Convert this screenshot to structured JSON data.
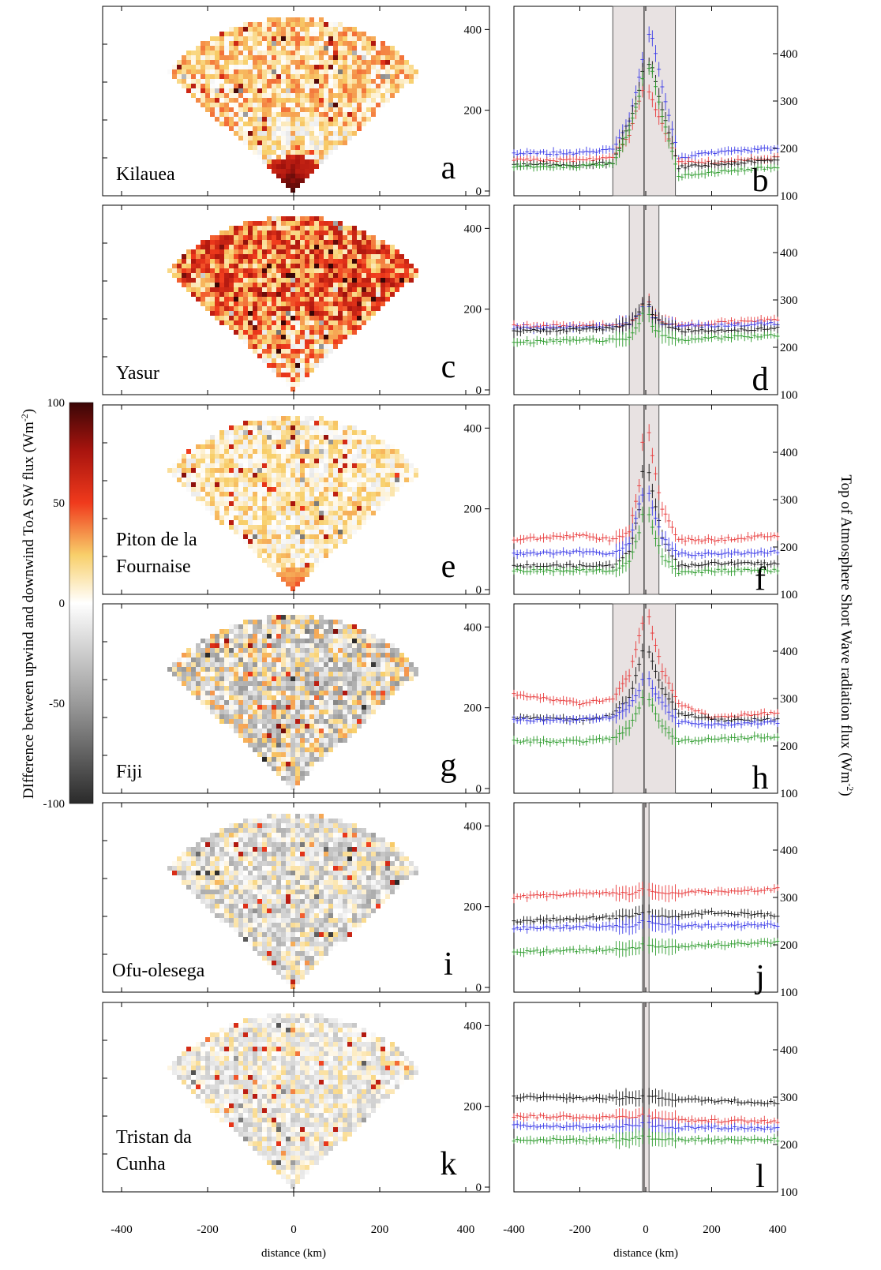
{
  "figure": {
    "colorbar": {
      "label": "DIfference between upwind and downwind ToA SW flux (Wm-2)",
      "ticks": [
        "100",
        "50",
        "0",
        "-50",
        "-100"
      ]
    },
    "right_ylabel": "Top of Atmosphere Short Wave radiation flux (Wm-2)",
    "xlabel_left": "distance (km)",
    "xlabel_right": "distance (km)",
    "map_xticks": [
      "-400",
      "-200",
      "0",
      "200",
      "400"
    ],
    "map_yticks": [
      "0",
      "200",
      "400"
    ],
    "profile_xticks": [
      "-400",
      "-200",
      "0",
      "200",
      "400"
    ],
    "profile_yticks": [
      "100",
      "200",
      "300",
      "400"
    ]
  },
  "colors": {
    "red_series": "#e8393a",
    "blue_series": "#3a3ae8",
    "black_series": "#111111",
    "green_series": "#2a9a2a",
    "shade": "#e8e2e2",
    "panel_border": "#000000"
  },
  "chart_data": [
    {
      "panel": "a",
      "type": "heatmap",
      "title": "Kilauea",
      "xlim": [
        -400,
        400
      ],
      "ylim": [
        0,
        450
      ],
      "xticks": [
        -400,
        -200,
        0,
        200,
        400
      ],
      "yticks": [
        0,
        200,
        400
      ]
    },
    {
      "panel": "b",
      "type": "line",
      "xlim": [
        -400,
        400
      ],
      "ylim": [
        100,
        500
      ],
      "yticks": [
        100,
        200,
        300,
        400
      ],
      "shaded_region_km": [
        -100,
        90
      ],
      "x": [
        -400,
        -200,
        -100,
        -50,
        -20,
        -10,
        10,
        20,
        50,
        100,
        200,
        400
      ],
      "series": [
        {
          "color": "blue",
          "values": [
            190,
            190,
            198,
            260,
            350,
            390,
            440,
            435,
            330,
            180,
            190,
            200
          ]
        },
        {
          "color": "red",
          "values": [
            175,
            175,
            180,
            230,
            300,
            320,
            320,
            300,
            250,
            170,
            170,
            180
          ]
        },
        {
          "color": "black",
          "values": [
            165,
            165,
            170,
            250,
            320,
            360,
            380,
            370,
            280,
            160,
            165,
            175
          ]
        },
        {
          "color": "green",
          "values": [
            162,
            162,
            168,
            240,
            310,
            350,
            370,
            360,
            270,
            140,
            150,
            160
          ]
        }
      ]
    },
    {
      "panel": "c",
      "type": "heatmap",
      "title": "Yasur",
      "xlim": [
        -400,
        400
      ],
      "ylim": [
        0,
        450
      ],
      "xticks": [
        -400,
        -200,
        0,
        200,
        400
      ],
      "yticks": [
        0,
        200,
        400
      ]
    },
    {
      "panel": "d",
      "type": "line",
      "xlim": [
        -400,
        400
      ],
      "ylim": [
        100,
        500
      ],
      "yticks": [
        100,
        200,
        300,
        400
      ],
      "shaded_region_km": [
        -50,
        40
      ],
      "x": [
        -400,
        -200,
        -100,
        -50,
        -20,
        -10,
        10,
        20,
        50,
        100,
        200,
        400
      ],
      "series": [
        {
          "color": "red",
          "values": [
            245,
            245,
            245,
            250,
            270,
            290,
            295,
            270,
            255,
            245,
            250,
            260
          ]
        },
        {
          "color": "blue",
          "values": [
            240,
            242,
            245,
            250,
            270,
            285,
            285,
            265,
            250,
            245,
            245,
            250
          ]
        },
        {
          "color": "black",
          "values": [
            235,
            237,
            240,
            250,
            275,
            290,
            290,
            270,
            250,
            235,
            235,
            240
          ]
        },
        {
          "color": "green",
          "values": [
            210,
            215,
            215,
            220,
            250,
            270,
            270,
            245,
            225,
            215,
            220,
            225
          ]
        }
      ]
    },
    {
      "panel": "e",
      "type": "heatmap",
      "title": "Piton de la Fournaise",
      "xlim": [
        -400,
        400
      ],
      "ylim": [
        0,
        450
      ],
      "xticks": [
        -400,
        -200,
        0,
        200,
        400
      ],
      "yticks": [
        0,
        200,
        400
      ]
    },
    {
      "panel": "f",
      "type": "line",
      "xlim": [
        -400,
        400
      ],
      "ylim": [
        100,
        500
      ],
      "yticks": [
        100,
        200,
        300,
        400
      ],
      "shaded_region_km": [
        -50,
        40
      ],
      "x": [
        -400,
        -200,
        -100,
        -50,
        -20,
        -10,
        10,
        20,
        50,
        100,
        200,
        400
      ],
      "series": [
        {
          "color": "red",
          "values": [
            215,
            225,
            215,
            230,
            330,
            420,
            440,
            390,
            280,
            215,
            215,
            225
          ]
        },
        {
          "color": "black",
          "values": [
            160,
            160,
            160,
            190,
            280,
            360,
            360,
            320,
            220,
            160,
            165,
            165
          ]
        },
        {
          "color": "blue",
          "values": [
            185,
            190,
            185,
            210,
            290,
            310,
            310,
            280,
            220,
            185,
            185,
            190
          ]
        },
        {
          "color": "green",
          "values": [
            150,
            150,
            150,
            170,
            230,
            270,
            270,
            240,
            180,
            145,
            150,
            150
          ]
        }
      ]
    },
    {
      "panel": "g",
      "type": "heatmap",
      "title": "Fiji",
      "xlim": [
        -400,
        400
      ],
      "ylim": [
        0,
        450
      ],
      "xticks": [
        -400,
        -200,
        0,
        200,
        400
      ],
      "yticks": [
        0,
        200,
        400
      ]
    },
    {
      "panel": "h",
      "type": "line",
      "xlim": [
        -400,
        400
      ],
      "ylim": [
        100,
        500
      ],
      "yticks": [
        100,
        200,
        300,
        400
      ],
      "shaded_region_km": [
        -100,
        90
      ],
      "x": [
        -400,
        -200,
        -100,
        -50,
        -20,
        -10,
        10,
        20,
        50,
        100,
        200,
        400
      ],
      "series": [
        {
          "color": "red",
          "values": [
            310,
            290,
            300,
            350,
            430,
            460,
            470,
            440,
            360,
            290,
            260,
            270
          ]
        },
        {
          "color": "black",
          "values": [
            260,
            255,
            265,
            300,
            370,
            400,
            400,
            380,
            320,
            270,
            255,
            255
          ]
        },
        {
          "color": "blue",
          "values": [
            255,
            255,
            260,
            285,
            320,
            340,
            340,
            320,
            290,
            250,
            245,
            250
          ]
        },
        {
          "color": "green",
          "values": [
            210,
            210,
            215,
            240,
            280,
            300,
            300,
            285,
            240,
            210,
            215,
            220
          ]
        }
      ]
    },
    {
      "panel": "i",
      "type": "heatmap",
      "title": "Ofu-olesega",
      "xlim": [
        -400,
        400
      ],
      "ylim": [
        0,
        450
      ],
      "xticks": [
        -400,
        -200,
        0,
        200,
        400
      ],
      "yticks": [
        0,
        200,
        400
      ]
    },
    {
      "panel": "j",
      "type": "line",
      "xlim": [
        -400,
        400
      ],
      "ylim": [
        100,
        500
      ],
      "yticks": [
        100,
        200,
        300,
        400
      ],
      "shaded_region_km": [
        -10,
        10
      ],
      "x": [
        -400,
        -200,
        -100,
        -50,
        -20,
        -10,
        10,
        20,
        50,
        100,
        200,
        400
      ],
      "series": [
        {
          "color": "red",
          "values": [
            300,
            308,
            308,
            308,
            312,
            318,
            318,
            312,
            310,
            310,
            312,
            318
          ]
        },
        {
          "color": "black",
          "values": [
            250,
            255,
            258,
            260,
            265,
            268,
            268,
            262,
            260,
            262,
            268,
            262
          ]
        },
        {
          "color": "blue",
          "values": [
            235,
            238,
            240,
            240,
            245,
            248,
            248,
            244,
            242,
            240,
            240,
            242
          ]
        },
        {
          "color": "green",
          "values": [
            185,
            188,
            190,
            192,
            196,
            200,
            200,
            198,
            196,
            196,
            200,
            206
          ]
        }
      ]
    },
    {
      "panel": "k",
      "type": "heatmap",
      "title": "Tristan da Cunha",
      "xlim": [
        -400,
        400
      ],
      "ylim": [
        0,
        450
      ],
      "xticks": [
        -400,
        -200,
        0,
        200,
        400
      ],
      "yticks": [
        0,
        200,
        400
      ]
    },
    {
      "panel": "l",
      "type": "line",
      "xlim": [
        -400,
        400
      ],
      "ylim": [
        100,
        500
      ],
      "yticks": [
        100,
        200,
        300,
        400
      ],
      "shaded_region_km": [
        -10,
        10
      ],
      "x": [
        -400,
        -200,
        -100,
        -50,
        -20,
        -10,
        10,
        20,
        50,
        100,
        200,
        400
      ],
      "series": [
        {
          "color": "black",
          "values": [
            300,
            298,
            298,
            298,
            300,
            304,
            304,
            300,
            298,
            295,
            293,
            288
          ]
        },
        {
          "color": "red",
          "values": [
            260,
            258,
            258,
            258,
            260,
            262,
            262,
            258,
            256,
            252,
            250,
            248
          ]
        },
        {
          "color": "blue",
          "values": [
            240,
            238,
            238,
            240,
            242,
            244,
            244,
            240,
            238,
            236,
            236,
            234
          ]
        },
        {
          "color": "green",
          "values": [
            210,
            210,
            210,
            212,
            214,
            216,
            216,
            212,
            212,
            210,
            210,
            210
          ]
        }
      ]
    }
  ]
}
